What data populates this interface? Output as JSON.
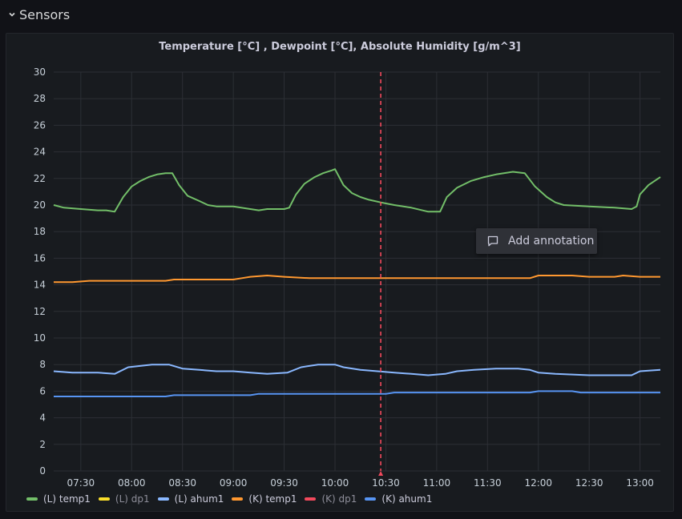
{
  "row": {
    "title": "Sensors",
    "toggle_icon": "chevron-down-icon"
  },
  "panel": {
    "title": "Temperature [°C] , Dewpoint [°C], Absolute Humidity [g/m^3]"
  },
  "annotation_menu": {
    "label": "Add annotation",
    "icon": "comment-icon"
  },
  "chart_data": {
    "type": "line",
    "title": "Temperature [°C] , Dewpoint [°C], Absolute Humidity [g/m^3]",
    "xlabel": "",
    "ylabel": "",
    "x_ticks": [
      "07:30",
      "08:00",
      "08:30",
      "09:00",
      "09:30",
      "10:00",
      "10:30",
      "11:00",
      "11:30",
      "12:00",
      "12:30",
      "13:00"
    ],
    "x_range": [
      "07:14",
      "13:12"
    ],
    "ylim": [
      0,
      30
    ],
    "y_ticks": [
      "0",
      "2",
      "4",
      "6",
      "8",
      "10",
      "12",
      "14",
      "16",
      "18",
      "20",
      "22",
      "24",
      "26",
      "28",
      "30"
    ],
    "grid": true,
    "legend_position": "bottom-left",
    "cursor_time": "10:27",
    "series": [
      {
        "name": "(L) temp1",
        "color": "#73bf69",
        "visible": true,
        "points": [
          [
            "07:14",
            20.0
          ],
          [
            "07:20",
            19.8
          ],
          [
            "07:30",
            19.7
          ],
          [
            "07:40",
            19.6
          ],
          [
            "07:45",
            19.6
          ],
          [
            "07:50",
            19.5
          ],
          [
            "07:55",
            20.6
          ],
          [
            "08:00",
            21.4
          ],
          [
            "08:05",
            21.8
          ],
          [
            "08:10",
            22.1
          ],
          [
            "08:15",
            22.3
          ],
          [
            "08:20",
            22.4
          ],
          [
            "08:24",
            22.4
          ],
          [
            "08:28",
            21.5
          ],
          [
            "08:33",
            20.7
          ],
          [
            "08:40",
            20.3
          ],
          [
            "08:45",
            20.0
          ],
          [
            "08:50",
            19.9
          ],
          [
            "09:00",
            19.9
          ],
          [
            "09:10",
            19.7
          ],
          [
            "09:15",
            19.6
          ],
          [
            "09:20",
            19.7
          ],
          [
            "09:30",
            19.7
          ],
          [
            "09:33",
            19.8
          ],
          [
            "09:37",
            20.8
          ],
          [
            "09:42",
            21.6
          ],
          [
            "09:48",
            22.1
          ],
          [
            "09:53",
            22.4
          ],
          [
            "09:58",
            22.6
          ],
          [
            "10:00",
            22.7
          ],
          [
            "10:05",
            21.5
          ],
          [
            "10:10",
            20.9
          ],
          [
            "10:15",
            20.6
          ],
          [
            "10:20",
            20.4
          ],
          [
            "10:27",
            20.2
          ],
          [
            "10:35",
            20.0
          ],
          [
            "10:45",
            19.8
          ],
          [
            "10:55",
            19.5
          ],
          [
            "11:02",
            19.5
          ],
          [
            "11:06",
            20.6
          ],
          [
            "11:12",
            21.3
          ],
          [
            "11:20",
            21.8
          ],
          [
            "11:28",
            22.1
          ],
          [
            "11:35",
            22.3
          ],
          [
            "11:45",
            22.5
          ],
          [
            "11:52",
            22.4
          ],
          [
            "11:58",
            21.4
          ],
          [
            "12:05",
            20.6
          ],
          [
            "12:10",
            20.2
          ],
          [
            "12:15",
            20.0
          ],
          [
            "12:30",
            19.9
          ],
          [
            "12:45",
            19.8
          ],
          [
            "12:55",
            19.7
          ],
          [
            "12:58",
            19.9
          ],
          [
            "13:00",
            20.8
          ],
          [
            "13:05",
            21.5
          ],
          [
            "13:12",
            22.1
          ]
        ]
      },
      {
        "name": "(L) dp1",
        "color": "#fade2a",
        "visible": false,
        "points": []
      },
      {
        "name": "(L) ahum1",
        "color": "#8ab8ff",
        "visible": true,
        "points": [
          [
            "07:14",
            7.5
          ],
          [
            "07:25",
            7.4
          ],
          [
            "07:40",
            7.4
          ],
          [
            "07:50",
            7.3
          ],
          [
            "07:58",
            7.8
          ],
          [
            "08:05",
            7.9
          ],
          [
            "08:12",
            8.0
          ],
          [
            "08:22",
            8.0
          ],
          [
            "08:30",
            7.7
          ],
          [
            "08:40",
            7.6
          ],
          [
            "08:50",
            7.5
          ],
          [
            "09:00",
            7.5
          ],
          [
            "09:10",
            7.4
          ],
          [
            "09:20",
            7.3
          ],
          [
            "09:32",
            7.4
          ],
          [
            "09:40",
            7.8
          ],
          [
            "09:50",
            8.0
          ],
          [
            "10:00",
            8.0
          ],
          [
            "10:05",
            7.8
          ],
          [
            "10:15",
            7.6
          ],
          [
            "10:25",
            7.5
          ],
          [
            "10:35",
            7.4
          ],
          [
            "10:45",
            7.3
          ],
          [
            "10:55",
            7.2
          ],
          [
            "11:05",
            7.3
          ],
          [
            "11:12",
            7.5
          ],
          [
            "11:22",
            7.6
          ],
          [
            "11:35",
            7.7
          ],
          [
            "11:48",
            7.7
          ],
          [
            "11:55",
            7.6
          ],
          [
            "12:00",
            7.4
          ],
          [
            "12:10",
            7.3
          ],
          [
            "12:30",
            7.2
          ],
          [
            "12:55",
            7.2
          ],
          [
            "13:00",
            7.5
          ],
          [
            "13:12",
            7.6
          ]
        ]
      },
      {
        "name": "(K) temp1",
        "color": "#ff9830",
        "visible": true,
        "points": [
          [
            "07:14",
            14.2
          ],
          [
            "07:25",
            14.2
          ],
          [
            "07:35",
            14.3
          ],
          [
            "08:00",
            14.3
          ],
          [
            "08:20",
            14.3
          ],
          [
            "08:25",
            14.4
          ],
          [
            "08:40",
            14.4
          ],
          [
            "09:00",
            14.4
          ],
          [
            "09:05",
            14.5
          ],
          [
            "09:10",
            14.6
          ],
          [
            "09:20",
            14.7
          ],
          [
            "09:30",
            14.6
          ],
          [
            "09:45",
            14.5
          ],
          [
            "10:00",
            14.5
          ],
          [
            "10:30",
            14.5
          ],
          [
            "11:00",
            14.5
          ],
          [
            "11:40",
            14.5
          ],
          [
            "11:55",
            14.5
          ],
          [
            "12:00",
            14.7
          ],
          [
            "12:20",
            14.7
          ],
          [
            "12:30",
            14.6
          ],
          [
            "12:45",
            14.6
          ],
          [
            "12:50",
            14.7
          ],
          [
            "13:00",
            14.6
          ],
          [
            "13:12",
            14.6
          ]
        ]
      },
      {
        "name": "(K) dp1",
        "color": "#f2495c",
        "visible": false,
        "points": []
      },
      {
        "name": "(K) ahum1",
        "color": "#5794f2",
        "visible": true,
        "points": [
          [
            "07:14",
            5.6
          ],
          [
            "07:30",
            5.6
          ],
          [
            "08:00",
            5.6
          ],
          [
            "08:20",
            5.6
          ],
          [
            "08:25",
            5.7
          ],
          [
            "09:00",
            5.7
          ],
          [
            "09:10",
            5.7
          ],
          [
            "09:15",
            5.8
          ],
          [
            "10:00",
            5.8
          ],
          [
            "10:30",
            5.8
          ],
          [
            "10:35",
            5.9
          ],
          [
            "11:00",
            5.9
          ],
          [
            "11:30",
            5.9
          ],
          [
            "11:55",
            5.9
          ],
          [
            "12:00",
            6.0
          ],
          [
            "12:20",
            6.0
          ],
          [
            "12:25",
            5.9
          ],
          [
            "13:00",
            5.9
          ],
          [
            "13:12",
            5.9
          ]
        ]
      }
    ]
  }
}
